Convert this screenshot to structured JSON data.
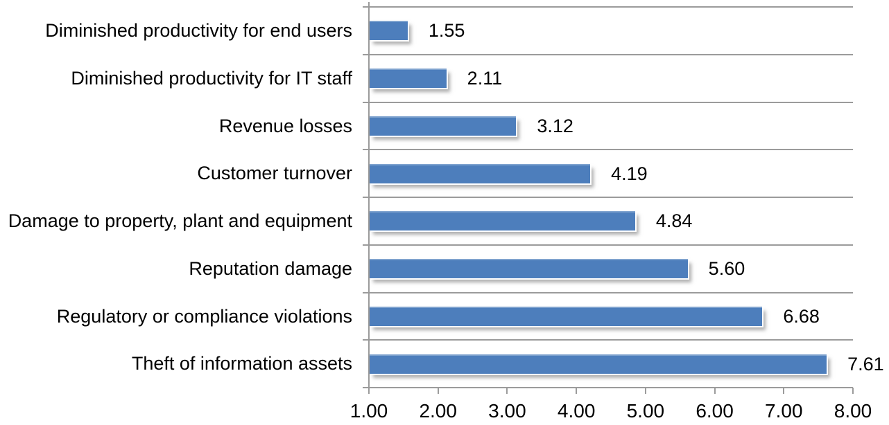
{
  "chart_data": {
    "type": "bar",
    "orientation": "horizontal",
    "title": "",
    "xlabel": "",
    "ylabel": "",
    "categories": [
      "Diminished productivity for end users",
      "Diminished productivity for IT staff",
      "Revenue losses",
      "Customer turnover",
      "Damage to property, plant and equipment",
      "Reputation damage",
      "Regulatory or compliance violations",
      "Theft of information assets"
    ],
    "values": [
      1.55,
      2.11,
      3.12,
      4.19,
      4.84,
      5.6,
      6.68,
      7.61
    ],
    "data_labels": [
      "1.55",
      "2.11",
      "3.12",
      "4.19",
      "4.84",
      "5.60",
      "6.68",
      "7.61"
    ],
    "x_axis": {
      "min": 1.0,
      "max": 8.0,
      "tick_interval": 1.0,
      "tick_labels": [
        "1.00",
        "2.00",
        "3.00",
        "4.00",
        "5.00",
        "6.00",
        "7.00",
        "8.00"
      ]
    },
    "grid": true,
    "legend": false,
    "colors": {
      "bar_fill": "#4D7EBC",
      "gridline": "#9b9b9b",
      "axis_line": "#9b9b9b",
      "text": "#000000",
      "background": "#ffffff"
    }
  }
}
